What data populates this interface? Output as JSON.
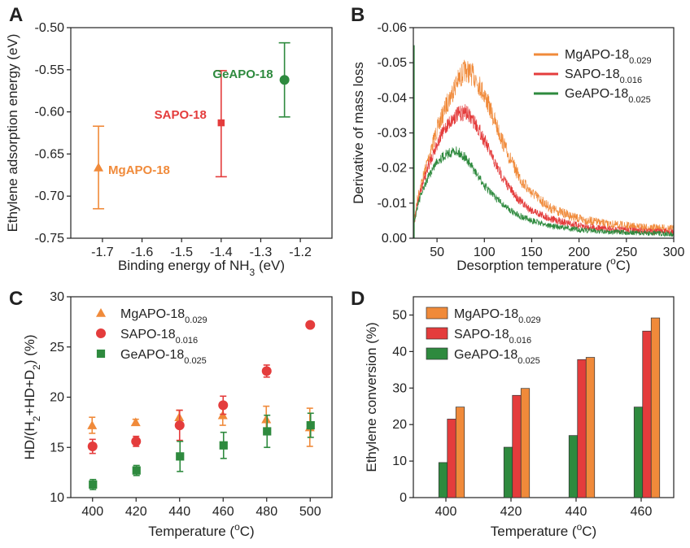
{
  "colors": {
    "mg": "#f08a3a",
    "sapo": "#e43c3c",
    "ge": "#2e8a3e",
    "axis": "#222222"
  },
  "chart_data": [
    {
      "panel": "A",
      "type": "scatter",
      "xlabel": "Binding energy of NH",
      "xlabel_sub": "3",
      "xlabel_tail": " (eV)",
      "ylabel": "Ethylene adsorption energy (eV)",
      "xlim": [
        -1.78,
        -1.12
      ],
      "ylim": [
        -0.75,
        -0.5
      ],
      "xticks": [
        -1.7,
        -1.6,
        -1.5,
        -1.4,
        -1.3,
        -1.2
      ],
      "xtick_labels": [
        "-1.7",
        "-1.6",
        "-1.5",
        "-1.4",
        "-1.3",
        "-1.2"
      ],
      "yticks": [
        -0.75,
        -0.7,
        -0.65,
        -0.6,
        -0.55,
        -0.5
      ],
      "ytick_labels": [
        "-0.75",
        "-0.70",
        "-0.65",
        "-0.60",
        "-0.55",
        "-0.50"
      ],
      "points": [
        {
          "name": "MgAPO-18",
          "x": -1.71,
          "y": -0.666,
          "err_lo": -0.715,
          "err_hi": -0.617,
          "marker": "triangle",
          "color": "#f08a3a"
        },
        {
          "name": "SAPO-18",
          "x": -1.4,
          "y": -0.613,
          "err_lo": -0.677,
          "err_hi": -0.551,
          "marker": "square",
          "color": "#e43c3c"
        },
        {
          "name": "GeAPO-18",
          "x": -1.24,
          "y": -0.562,
          "err_lo": -0.606,
          "err_hi": -0.518,
          "marker": "circle",
          "color": "#2e8a3e"
        }
      ]
    },
    {
      "panel": "B",
      "type": "line",
      "xlabel": "Desorption temperature (",
      "xlabel_sup": "o",
      "xlabel_tail": "C)",
      "ylabel": "Derivative of mass loss",
      "xlim": [
        25,
        300
      ],
      "ylim": [
        0,
        -0.06
      ],
      "xticks": [
        50,
        100,
        150,
        200,
        250,
        300
      ],
      "xtick_labels": [
        "50",
        "100",
        "150",
        "200",
        "250",
        "300"
      ],
      "yticks": [
        0,
        -0.01,
        -0.02,
        -0.03,
        -0.04,
        -0.05,
        -0.06
      ],
      "ytick_labels": [
        "0.00",
        "-0.01",
        "-0.02",
        "-0.03",
        "-0.04",
        "-0.05",
        "-0.06"
      ],
      "legend": [
        {
          "base": "MgAPO-18",
          "sub": "0.029",
          "color": "#f08a3a"
        },
        {
          "base": "SAPO-18",
          "sub": "0.016",
          "color": "#e43c3c"
        },
        {
          "base": "GeAPO-18",
          "sub": "0.025",
          "color": "#2e8a3e"
        }
      ],
      "series": [
        {
          "name": "MgAPO-18 0.029",
          "color": "#f08a3a",
          "noise": 0.006,
          "x": [
            25,
            30,
            40,
            50,
            60,
            70,
            80,
            90,
            100,
            110,
            120,
            130,
            140,
            150,
            170,
            200,
            230,
            260,
            300
          ],
          "y": [
            -0.004,
            -0.012,
            -0.022,
            -0.031,
            -0.038,
            -0.044,
            -0.048,
            -0.046,
            -0.041,
            -0.034,
            -0.027,
            -0.021,
            -0.016,
            -0.013,
            -0.0085,
            -0.0055,
            -0.004,
            -0.0032,
            -0.0026
          ]
        },
        {
          "name": "SAPO-18 0.016",
          "color": "#e43c3c",
          "noise": 0.005,
          "x": [
            25,
            30,
            40,
            50,
            60,
            70,
            80,
            90,
            100,
            110,
            120,
            130,
            140,
            150,
            170,
            200,
            230,
            260,
            300
          ],
          "y": [
            -0.003,
            -0.011,
            -0.02,
            -0.027,
            -0.032,
            -0.035,
            -0.036,
            -0.033,
            -0.028,
            -0.022,
            -0.017,
            -0.013,
            -0.01,
            -0.008,
            -0.0055,
            -0.0035,
            -0.0026,
            -0.0021,
            -0.0018
          ]
        },
        {
          "name": "GeAPO-18 0.025",
          "color": "#2e8a3e",
          "noise": 0.004,
          "x": [
            25,
            30,
            40,
            50,
            60,
            70,
            80,
            90,
            100,
            110,
            120,
            130,
            140,
            150,
            170,
            200,
            230,
            260,
            300
          ],
          "y": [
            -0.003,
            -0.01,
            -0.017,
            -0.022,
            -0.024,
            -0.025,
            -0.023,
            -0.019,
            -0.015,
            -0.012,
            -0.0095,
            -0.0075,
            -0.006,
            -0.005,
            -0.0035,
            -0.0024,
            -0.0018,
            -0.0015,
            -0.0012
          ]
        }
      ]
    },
    {
      "panel": "C",
      "type": "scatter",
      "xlabel": "Temperature (",
      "xlabel_sup": "o",
      "xlabel_tail": "C)",
      "ylabel_parts": [
        "HD/(H",
        "2",
        "+HD+D",
        "2",
        ") (%)"
      ],
      "xlim": [
        390,
        510
      ],
      "ylim": [
        10,
        30
      ],
      "xticks": [
        400,
        420,
        440,
        460,
        480,
        500
      ],
      "xtick_labels": [
        "400",
        "420",
        "440",
        "460",
        "480",
        "500"
      ],
      "yticks": [
        10,
        15,
        20,
        25,
        30
      ],
      "ytick_labels": [
        "10",
        "15",
        "20",
        "25",
        "30"
      ],
      "legend": [
        {
          "base": "MgAPO-18",
          "sub": "0.029",
          "color": "#f08a3a",
          "marker": "triangle"
        },
        {
          "base": "SAPO-18",
          "sub": "0.016",
          "color": "#e43c3c",
          "marker": "circle"
        },
        {
          "base": "GeAPO-18",
          "sub": "0.025",
          "color": "#2e8a3e",
          "marker": "square"
        }
      ],
      "series": [
        {
          "name": "MgAPO-18 0.029",
          "color": "#f08a3a",
          "marker": "triangle",
          "x": [
            400,
            420,
            440,
            460,
            480,
            500
          ],
          "y": [
            17.2,
            17.5,
            18.0,
            18.2,
            17.8,
            17.0
          ],
          "err": [
            0.8,
            0.3,
            0.7,
            1.0,
            1.3,
            1.9
          ]
        },
        {
          "name": "SAPO-18 0.016",
          "color": "#e43c3c",
          "marker": "circle",
          "x": [
            400,
            420,
            440,
            460,
            480,
            500
          ],
          "y": [
            15.1,
            15.6,
            17.2,
            19.2,
            22.6,
            27.2
          ],
          "err": [
            0.7,
            0.5,
            1.5,
            0.9,
            0.6,
            0
          ]
        },
        {
          "name": "GeAPO-18 0.025",
          "color": "#2e8a3e",
          "marker": "square",
          "x": [
            400,
            420,
            440,
            460,
            480,
            500
          ],
          "y": [
            11.3,
            12.7,
            14.1,
            15.2,
            16.6,
            17.2
          ],
          "err": [
            0.5,
            0.5,
            1.5,
            1.3,
            1.6,
            1.2
          ]
        }
      ]
    },
    {
      "panel": "D",
      "type": "bar",
      "xlabel": "Temperature (",
      "xlabel_sup": "o",
      "xlabel_tail": "C)",
      "ylabel": "Ethylene conversion (%)",
      "categories": [
        "400",
        "420",
        "440",
        "460"
      ],
      "ylim": [
        0,
        55
      ],
      "yticks": [
        0,
        10,
        20,
        30,
        40,
        50
      ],
      "ytick_labels": [
        "0",
        "10",
        "20",
        "30",
        "40",
        "50"
      ],
      "legend": [
        {
          "base": "MgAPO-18",
          "sub": "0.029",
          "color": "#f08a3a"
        },
        {
          "base": "SAPO-18",
          "sub": "0.016",
          "color": "#e43c3c"
        },
        {
          "base": "GeAPO-18",
          "sub": "0.025",
          "color": "#2e8a3e"
        }
      ],
      "series": [
        {
          "name": "GeAPO-18 0.025",
          "color": "#2e8a3e",
          "values": [
            9.6,
            13.8,
            17.0,
            24.8
          ]
        },
        {
          "name": "SAPO-18 0.016",
          "color": "#e43c3c",
          "values": [
            21.5,
            28.0,
            37.8,
            45.6
          ]
        },
        {
          "name": "MgAPO-18 0.029",
          "color": "#f08a3a",
          "values": [
            24.8,
            29.9,
            38.4,
            49.2
          ]
        }
      ]
    }
  ]
}
